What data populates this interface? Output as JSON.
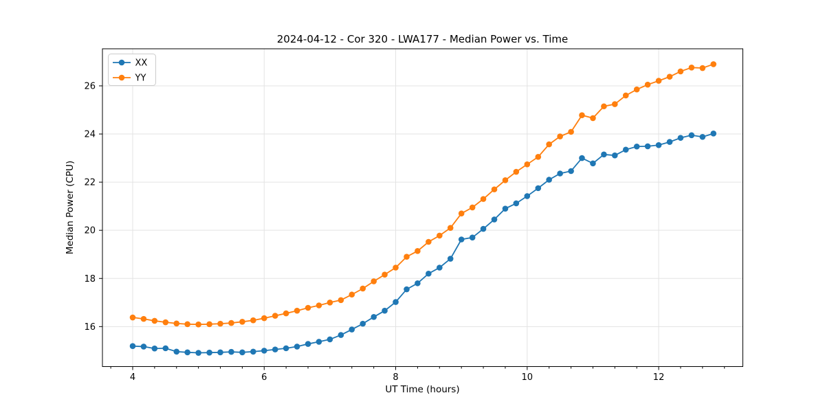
{
  "chart_data": {
    "type": "line",
    "title": "2024-04-12 - Cor 320 - LWA177 - Median Power vs. Time",
    "xlabel": "UT Time (hours)",
    "ylabel": "Median Power (CPU)",
    "xlim": [
      3.54,
      13.28
    ],
    "ylim": [
      14.34,
      27.54
    ],
    "xticks": [
      4,
      6,
      8,
      10,
      12
    ],
    "yticks": [
      16,
      18,
      20,
      22,
      24,
      26
    ],
    "minor_xtick_step": 0.3333,
    "grid": true,
    "legend_position": "upper left",
    "x": [
      4.0,
      4.167,
      4.333,
      4.5,
      4.667,
      4.833,
      5.0,
      5.167,
      5.333,
      5.5,
      5.667,
      5.833,
      6.0,
      6.167,
      6.333,
      6.5,
      6.667,
      6.833,
      7.0,
      7.167,
      7.333,
      7.5,
      7.667,
      7.833,
      8.0,
      8.167,
      8.333,
      8.5,
      8.667,
      8.833,
      9.0,
      9.167,
      9.333,
      9.5,
      9.667,
      9.833,
      10.0,
      10.167,
      10.333,
      10.5,
      10.667,
      10.833,
      11.0,
      11.167,
      11.333,
      11.5,
      11.667,
      11.833,
      12.0,
      12.167,
      12.333,
      12.5,
      12.667,
      12.833
    ],
    "series": [
      {
        "name": "XX",
        "color": "#1f77b4",
        "values": [
          15.19,
          15.17,
          15.09,
          15.1,
          14.96,
          14.93,
          14.91,
          14.92,
          14.93,
          14.95,
          14.93,
          14.96,
          15.0,
          15.05,
          15.1,
          15.17,
          15.28,
          15.37,
          15.47,
          15.65,
          15.88,
          16.12,
          16.4,
          16.66,
          17.02,
          17.55,
          17.8,
          18.2,
          18.45,
          18.82,
          19.62,
          19.7,
          20.06,
          20.45,
          20.9,
          21.12,
          21.42,
          21.75,
          22.1,
          22.36,
          22.46,
          23.0,
          22.78,
          23.15,
          23.11,
          23.35,
          23.48,
          23.49,
          23.54,
          23.67,
          23.84,
          23.95,
          23.88,
          24.02
        ]
      },
      {
        "name": "YY",
        "color": "#ff7f0e",
        "values": [
          16.38,
          16.32,
          16.24,
          16.18,
          16.13,
          16.1,
          16.09,
          16.1,
          16.12,
          16.15,
          16.2,
          16.26,
          16.35,
          16.45,
          16.55,
          16.66,
          16.78,
          16.88,
          17.0,
          17.1,
          17.33,
          17.58,
          17.88,
          18.16,
          18.45,
          18.9,
          19.14,
          19.52,
          19.78,
          20.1,
          20.7,
          20.95,
          21.3,
          21.7,
          22.08,
          22.43,
          22.74,
          23.05,
          23.57,
          23.9,
          24.09,
          24.78,
          24.66,
          25.15,
          25.24,
          25.6,
          25.85,
          26.05,
          26.21,
          26.38,
          26.6,
          26.76,
          26.74,
          26.9
        ]
      }
    ]
  }
}
